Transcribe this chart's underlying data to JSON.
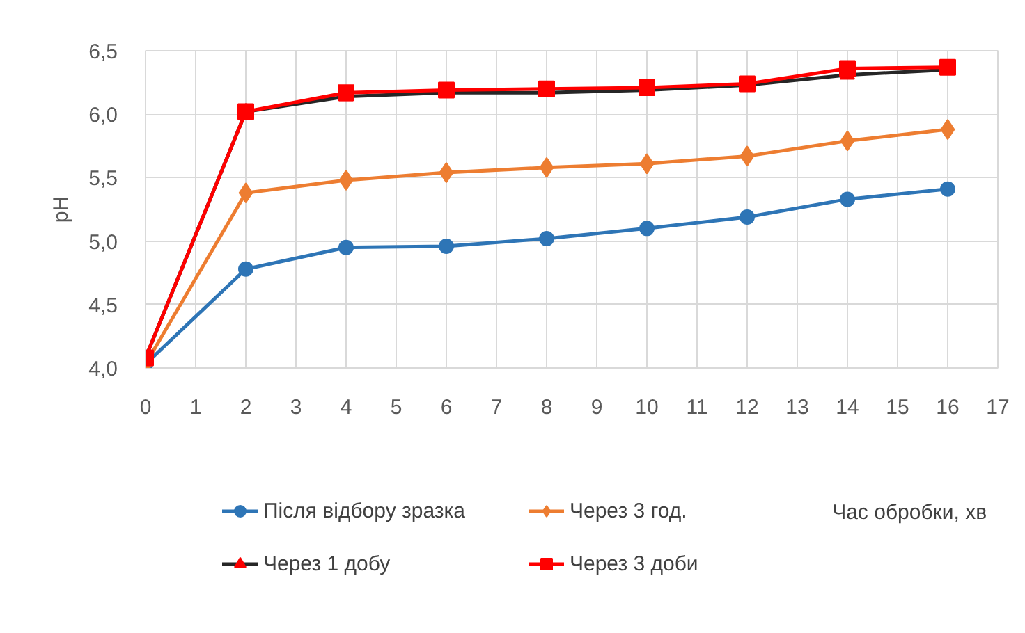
{
  "chart_data": {
    "type": "line",
    "ylabel": "pH",
    "xlabel": "Час обробки, хв",
    "x": [
      0,
      2,
      4,
      6,
      8,
      10,
      12,
      14,
      16
    ],
    "xlim": [
      0,
      17
    ],
    "xticks": [
      0,
      1,
      2,
      3,
      4,
      5,
      6,
      7,
      8,
      9,
      10,
      11,
      12,
      13,
      14,
      15,
      16,
      17
    ],
    "ylim": [
      4,
      6.5
    ],
    "yticks": [
      {
        "value": 4,
        "label": "4,0"
      },
      {
        "value": 4.5,
        "label": "4,5"
      },
      {
        "value": 5,
        "label": "5,0"
      },
      {
        "value": 5.5,
        "label": "5,5"
      },
      {
        "value": 6,
        "label": "6,0"
      },
      {
        "value": 6.5,
        "label": "6,5"
      }
    ],
    "grid": true,
    "legend": "bottom",
    "series": [
      {
        "name": "Після відбору зразка",
        "color": "#2e75b6",
        "marker": "circle",
        "values": [
          4.03,
          4.78,
          4.95,
          4.96,
          5.02,
          5.1,
          5.19,
          5.33,
          5.41
        ]
      },
      {
        "name": "Через 3 год.",
        "color": "#ed7d31",
        "marker": "diamond",
        "values": [
          4.03,
          5.38,
          5.48,
          5.54,
          5.58,
          5.61,
          5.67,
          5.79,
          5.88
        ]
      },
      {
        "name": "Через 1 добу",
        "color": "#262626",
        "colors": [
          "#fa0000",
          "#fa0000",
          "#fa0000",
          "#fa0000",
          "#fa0000",
          "#fa0000",
          "#fa0000",
          "#fa0000",
          "#fa0000"
        ],
        "marker": "triangle",
        "values": [
          4.08,
          6.02,
          6.14,
          6.17,
          6.17,
          6.19,
          6.23,
          6.31,
          6.35
        ]
      },
      {
        "name": "Через 3 доби",
        "color": "#ff0000",
        "marker": "square",
        "values": [
          4.08,
          6.02,
          6.17,
          6.19,
          6.2,
          6.21,
          6.24,
          6.36,
          6.37
        ]
      }
    ]
  }
}
